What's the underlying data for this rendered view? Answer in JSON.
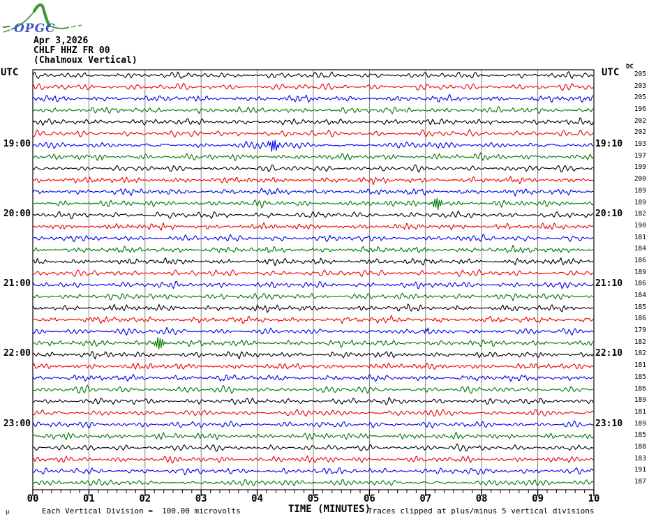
{
  "logo": {
    "text": "OPGC",
    "green": "#3d9b35",
    "blue": "#3a56c4"
  },
  "header": {
    "date": "Apr 3,2026",
    "station": "CHLF HHZ FR 00",
    "station_name": "(Chalmoux Vertical)"
  },
  "axes": {
    "left_header": "UTC",
    "right_header": "UTC",
    "dc_header": "DC",
    "x_label": "TIME (MINUTES)",
    "x_ticks": [
      "00",
      "01",
      "02",
      "03",
      "04",
      "05",
      "06",
      "07",
      "08",
      "09",
      "10"
    ],
    "minor_ticks_per_minute": 5
  },
  "footer": {
    "micro_symbol": "μ",
    "scale_note": "Each Vertical Division =  100.00 microvolts",
    "clip_note": "Traces clipped at plus/minus 5 vertical divisions"
  },
  "chart_data": {
    "type": "line",
    "subtype": "helicorder-seismogram",
    "x_range_minutes": [
      0,
      10
    ],
    "minutes_per_row": 10,
    "rows_count": 36,
    "trace_colors_cycle": [
      "#000000",
      "#ee0000",
      "#0000ee",
      "#007700"
    ],
    "grid": {
      "vertical_line_every_minute": true,
      "color": "#808080"
    },
    "row_labels": [
      {
        "row_index": 6,
        "left": "19:00",
        "right": "19:10"
      },
      {
        "row_index": 12,
        "left": "20:00",
        "right": "20:10"
      },
      {
        "row_index": 18,
        "left": "21:00",
        "right": "21:10"
      },
      {
        "row_index": 24,
        "left": "22:00",
        "right": "22:10"
      },
      {
        "row_index": 30,
        "left": "23:00",
        "right": "23:10"
      }
    ],
    "dc_values": [
      205,
      203,
      205,
      196,
      202,
      202,
      193,
      197,
      199,
      200,
      189,
      189,
      182,
      190,
      181,
      184,
      186,
      189,
      186,
      184,
      185,
      186,
      179,
      182,
      182,
      181,
      185,
      186,
      189,
      181,
      189,
      185,
      188,
      183,
      191,
      187
    ],
    "events": [
      {
        "row_index": 6,
        "minute": 4.3
      },
      {
        "row_index": 11,
        "minute": 7.2
      },
      {
        "row_index": 22,
        "minute": 7.05
      },
      {
        "row_index": 23,
        "minute": 2.25
      }
    ]
  }
}
